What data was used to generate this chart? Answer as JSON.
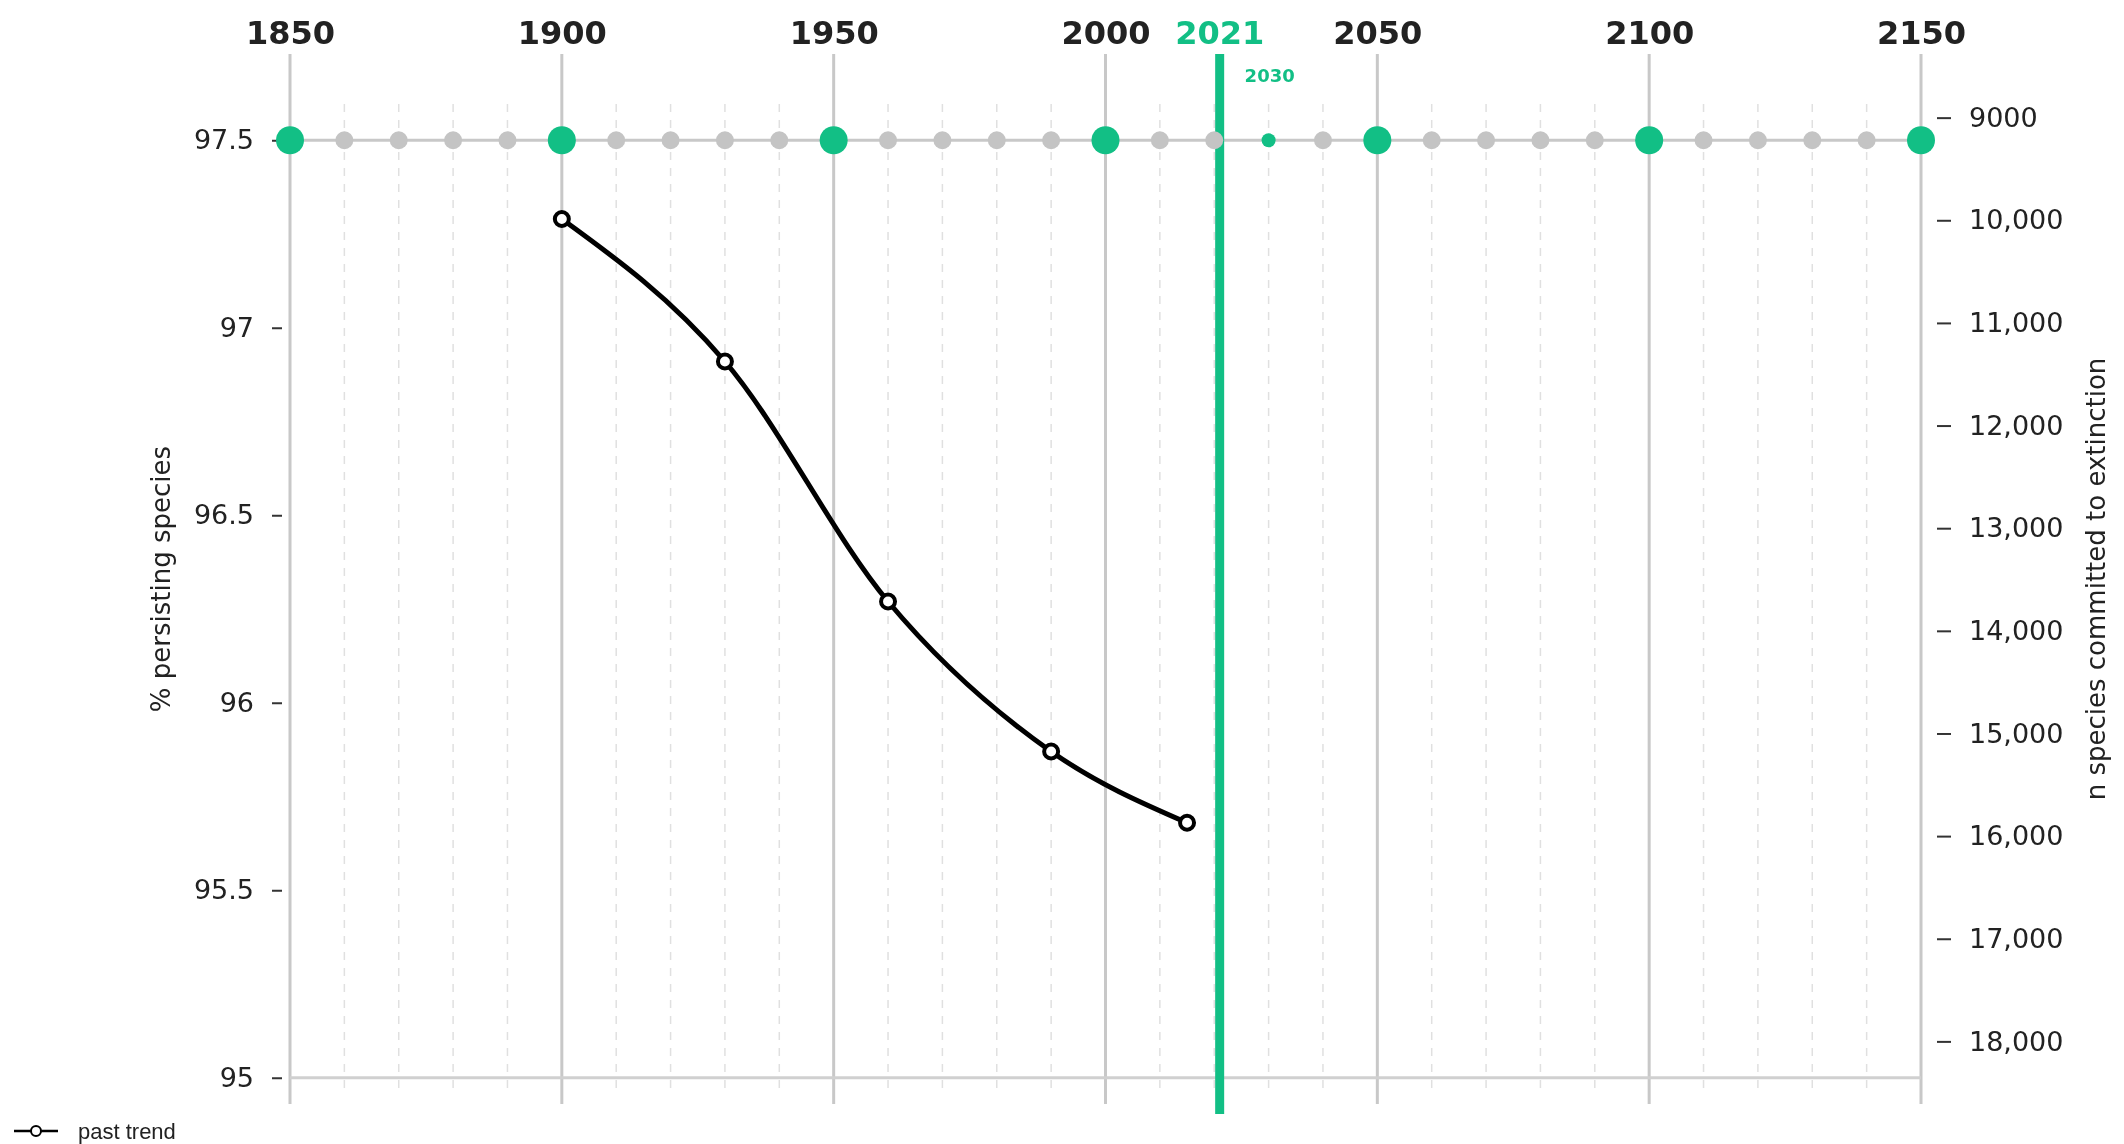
{
  "chart_data": {
    "type": "line",
    "xlabel": null,
    "ylabel": "% persisting species",
    "y2label": "n species committed to extinction",
    "xlim": [
      1850,
      2150
    ],
    "xticks": [
      1850,
      1900,
      1950,
      2000,
      2050,
      2100,
      2150
    ],
    "ylim": [
      94.93,
      97.73
    ],
    "yticks": [
      95,
      95.5,
      {
        "value": 96,
        "label": "96"
      },
      96.5,
      {
        "value": 97,
        "label": "97"
      },
      97.5
    ],
    "y2lim": [
      18610,
      8380
    ],
    "y2ticks": [
      {
        "value": 9000,
        "label": "9000"
      },
      {
        "value": 10000,
        "label": "10,000"
      },
      {
        "value": 11000,
        "label": "11,000"
      },
      {
        "value": 12000,
        "label": "12,000"
      },
      {
        "value": 13000,
        "label": "13,000"
      },
      {
        "value": 14000,
        "label": "14,000"
      },
      {
        "value": 15000,
        "label": "15,000"
      },
      {
        "value": 16000,
        "label": "16,000"
      },
      {
        "value": 17000,
        "label": "17,000"
      },
      {
        "value": 18000,
        "label": "18,000"
      }
    ],
    "grid": "x",
    "legend": "bottom left",
    "ref_lines": [
      {
        "axis": "y",
        "value": 97.5,
        "label": null,
        "color": "#c8c8c8"
      },
      {
        "axis": "y",
        "value": 95,
        "label": null,
        "color": "#d0d0d0"
      },
      {
        "axis": "x",
        "value": 2021,
        "label": "2021",
        "color": "#12bf85"
      }
    ],
    "annotations": [
      "2030"
    ],
    "series": [
      {
        "type": "scatter",
        "marker": "circle",
        "color": "#c4c4c4",
        "x": [
          1860,
          1870,
          1880,
          1890,
          1910,
          1920,
          1930,
          1940,
          1960,
          1970,
          1980,
          1990,
          2010,
          2020,
          2040,
          2060,
          2070,
          2080,
          2090,
          2110,
          2120,
          2130,
          2140
        ],
        "values": [
          97.5,
          97.5,
          97.5,
          97.5,
          97.5,
          97.5,
          97.5,
          97.5,
          97.5,
          97.5,
          97.5,
          97.5,
          97.5,
          97.5,
          97.5,
          97.5,
          97.5,
          97.5,
          97.5,
          97.5,
          97.5,
          97.5,
          97.5
        ]
      },
      {
        "type": "scatter",
        "marker": "circle",
        "color": "#12bf85",
        "x": [
          1850,
          1900,
          1950,
          2000,
          2050,
          2100,
          2150
        ],
        "values": [
          97.5,
          97.5,
          97.5,
          97.5,
          97.5,
          97.5,
          97.5
        ]
      },
      {
        "type": "scatter",
        "marker": "circle",
        "color": "#12bf85",
        "x": [
          2030
        ],
        "values": [
          97.5
        ]
      },
      {
        "name": "past trend",
        "marker": "circle",
        "line_style": "solid",
        "color": "#000000",
        "x": [
          1900,
          1930,
          1960,
          1990,
          2015
        ],
        "values": [
          97.29,
          96.91,
          96.27,
          95.87,
          95.68
        ]
      }
    ]
  }
}
